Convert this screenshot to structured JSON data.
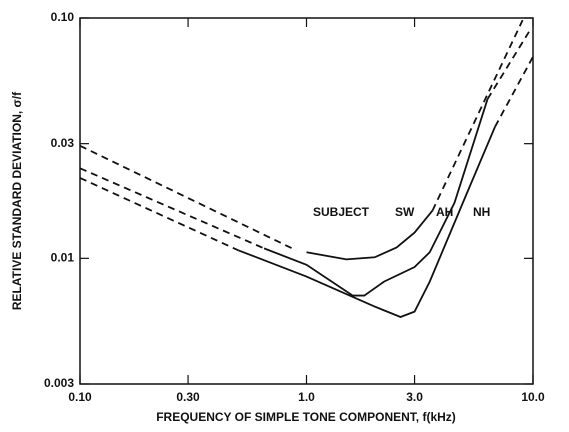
{
  "chart_data": {
    "type": "line",
    "xlabel": "FREQUENCY OF SIMPLE TONE COMPONENT, f(kHz)",
    "ylabel": "RELATIVE STANDARD DEVIATION, σ/f",
    "annotations": [
      "SUBJECT"
    ],
    "xscale": "log",
    "yscale": "log",
    "xlim": [
      0.1,
      10
    ],
    "ylim": [
      0.003,
      0.1
    ],
    "xticks": [
      {
        "value": 0.1,
        "label": "0.10"
      },
      {
        "value": 0.3,
        "label": "0.30"
      },
      {
        "value": 1,
        "label": "1.0"
      },
      {
        "value": 3,
        "label": "3.0"
      },
      {
        "value": 10,
        "label": "10.0"
      }
    ],
    "yticks": [
      0.003,
      0.01,
      0.03,
      {
        "value": 0.1,
        "label": "0.10"
      }
    ],
    "series": [
      {
        "name": "SW",
        "color": "#111111",
        "linestyle": "solid",
        "x": [
          1.0,
          1.5,
          2.0,
          2.5,
          3.0,
          3.6
        ],
        "values": [
          0.0106,
          0.0099,
          0.0101,
          0.0111,
          0.0128,
          0.0158
        ]
      },
      {
        "color": "#111111",
        "linestyle": "dashed",
        "x": [
          0.1,
          0.9
        ],
        "values": [
          0.0294,
          0.0108
        ]
      },
      {
        "color": "#111111",
        "linestyle": "dashed",
        "x": [
          3.6,
          9.0
        ],
        "values": [
          0.0158,
          0.098
        ]
      },
      {
        "name": "AH",
        "color": "#111111",
        "linestyle": "solid",
        "x": [
          0.65,
          1.0,
          1.6,
          1.8,
          2.2,
          3.0,
          3.5,
          4.5,
          6.3
        ],
        "values": [
          0.011,
          0.0094,
          0.007,
          0.007,
          0.008,
          0.0092,
          0.0106,
          0.017,
          0.046
        ]
      },
      {
        "color": "#111111",
        "linestyle": "dashed",
        "x": [
          0.1,
          0.65
        ],
        "values": [
          0.0237,
          0.011
        ]
      },
      {
        "color": "#111111",
        "linestyle": "dashed",
        "x": [
          6.3,
          9.6
        ],
        "values": [
          0.046,
          0.0876
        ]
      },
      {
        "name": "NH",
        "color": "#111111",
        "linestyle": "solid",
        "x": [
          0.5,
          1.0,
          2.0,
          2.6,
          3.0,
          3.5,
          5.0,
          6.8
        ],
        "values": [
          0.0108,
          0.0084,
          0.0063,
          0.0057,
          0.006,
          0.008,
          0.0178,
          0.0353
        ]
      },
      {
        "color": "#111111",
        "linestyle": "dashed",
        "x": [
          0.1,
          0.5
        ],
        "values": [
          0.0216,
          0.0108
        ]
      },
      {
        "color": "#111111",
        "linestyle": "dashed",
        "x": [
          6.8,
          10
        ],
        "values": [
          0.0353,
          0.069
        ]
      }
    ]
  }
}
